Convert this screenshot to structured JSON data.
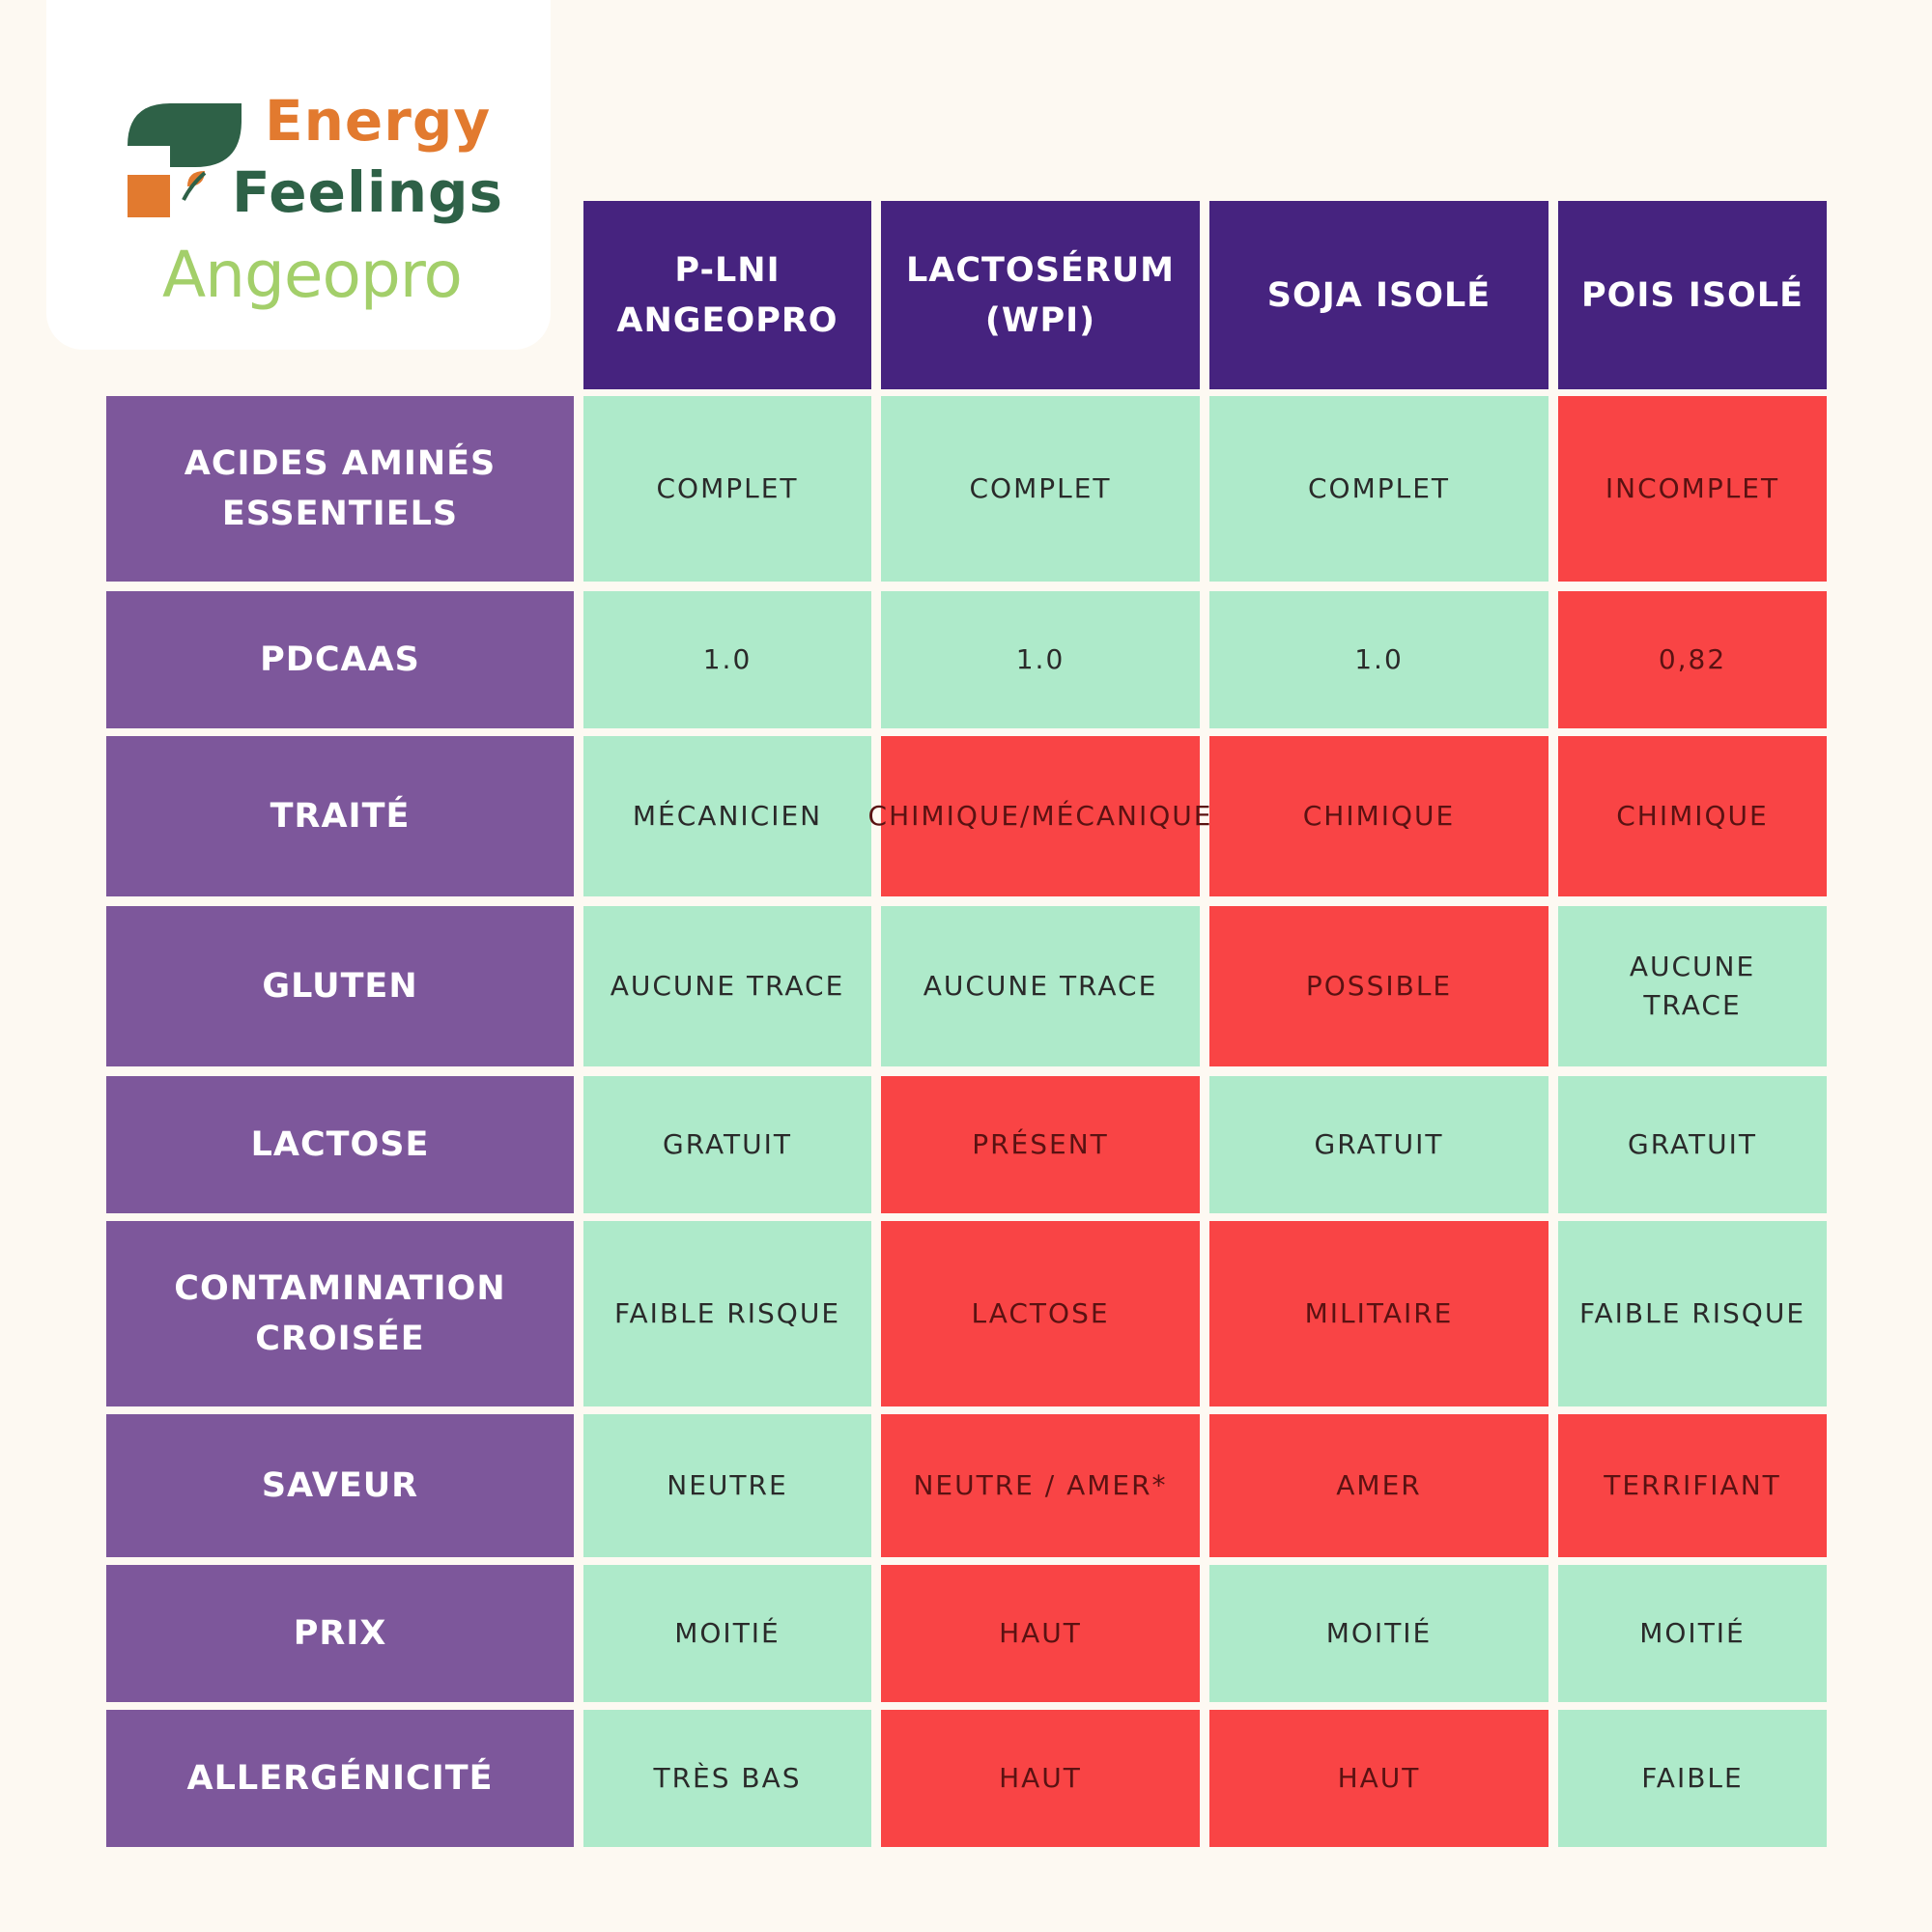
{
  "logo": {
    "line1": "Energy",
    "line2": "Feelings",
    "brand": "Angeopro",
    "colors": {
      "orange": "#e27a2f",
      "green": "#2e6147",
      "lime": "#a3cf6a"
    }
  },
  "colors": {
    "column_header": "#46237f",
    "row_header": "#7d579b",
    "favorable": "#aeeaca",
    "unfavorable": "#f94445",
    "background": "#fdf9f2"
  },
  "chart_data": {
    "type": "table",
    "columns": [
      "P-LNI ANGEOPRO",
      "LACTOSÉRUM (WPI)",
      "SOJA ISOLÉ",
      "POIS ISOLÉ"
    ],
    "rows": [
      {
        "label": "ACIDES AMINÉS ESSENTIELS",
        "cells": [
          "COMPLET",
          "COMPLET",
          "COMPLET",
          "INCOMPLET"
        ],
        "status": [
          "good",
          "good",
          "good",
          "bad"
        ]
      },
      {
        "label": "PDCAAS",
        "cells": [
          "1.0",
          "1.0",
          "1.0",
          "0,82"
        ],
        "status": [
          "good",
          "good",
          "good",
          "bad"
        ]
      },
      {
        "label": "TRAITÉ",
        "cells": [
          "MÉCANICIEN",
          "CHIMIQUE/MÉCANIQUE",
          "CHIMIQUE",
          "CHIMIQUE"
        ],
        "status": [
          "good",
          "bad",
          "bad",
          "bad"
        ]
      },
      {
        "label": "GLUTEN",
        "cells": [
          "AUCUNE TRACE",
          "AUCUNE TRACE",
          "POSSIBLE",
          "AUCUNE TRACE"
        ],
        "status": [
          "good",
          "good",
          "bad",
          "good"
        ]
      },
      {
        "label": "LACTOSE",
        "cells": [
          "GRATUIT",
          "PRÉSENT",
          "GRATUIT",
          "GRATUIT"
        ],
        "status": [
          "good",
          "bad",
          "good",
          "good"
        ]
      },
      {
        "label": "CONTAMINATION CROISÉE",
        "cells": [
          "FAIBLE RISQUE",
          "LACTOSE",
          "MILITAIRE",
          "FAIBLE RISQUE"
        ],
        "status": [
          "good",
          "bad",
          "bad",
          "good"
        ]
      },
      {
        "label": "SAVEUR",
        "cells": [
          "NEUTRE",
          "NEUTRE / AMER*",
          "AMER",
          "TERRIFIANT"
        ],
        "status": [
          "good",
          "bad",
          "bad",
          "bad"
        ]
      },
      {
        "label": "PRIX",
        "cells": [
          "MOITIÉ",
          "HAUT",
          "MOITIÉ",
          "MOITIÉ"
        ],
        "status": [
          "good",
          "bad",
          "good",
          "good"
        ]
      },
      {
        "label": "ALLERGÉNICITÉ",
        "cells": [
          "TRÈS BAS",
          "HAUT",
          "HAUT",
          "FAIBLE"
        ],
        "status": [
          "good",
          "bad",
          "bad",
          "good"
        ]
      }
    ]
  }
}
